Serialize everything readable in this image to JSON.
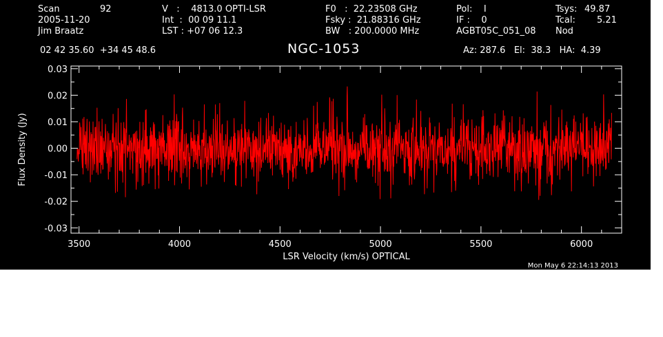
{
  "header": {
    "scan_label": "Scan",
    "scan_number": "92",
    "date": "2005-11-20",
    "observer": "Jim Braatz",
    "velocity_line": "V   :    4813.0 OPTI-LSR",
    "int_line": "Int  :  00 09 11.1",
    "lst_line": "LST : +07 06 12.3",
    "f0_line": "F0   :  22.23508 GHz",
    "fsky_line": "Fsky :  21.88316 GHz",
    "bw_line": "BW   : 200.0000 MHz",
    "pol_line": "Pol:    I",
    "if_line": "IF :    0",
    "project": "AGBT05C_051_08",
    "tsys_label": "Tsys:",
    "tsys_value": "49.87",
    "tcal_label": "Tcal:",
    "tcal_value": "5.21",
    "nod": "Nod",
    "coords": "02 42 35.60  +34 45 48.6",
    "source": "NGC-1053",
    "az_el_ha": "Az: 287.6   El:  38.3   HA:  4.39",
    "timestamp": "Mon May  6 22:14:13 2013"
  },
  "chart_data": {
    "type": "line",
    "title": "NGC-1053",
    "xlabel": "LSR Velocity (km/s) OPTICAL",
    "ylabel": "Flux Density (Jy)",
    "xlim": [
      3460,
      6200
    ],
    "ylim": [
      -0.032,
      0.031
    ],
    "xticks": [
      3500,
      4000,
      4500,
      5000,
      5500,
      6000
    ],
    "xtick_labels": [
      "3500",
      "4000",
      "4500",
      "5000",
      "5500",
      "6000"
    ],
    "yticks": [
      -0.03,
      -0.02,
      -0.01,
      0.0,
      0.01,
      0.02,
      0.03
    ],
    "ytick_labels": [
      "-0.03",
      "-0.02",
      "-0.01",
      "0.00",
      "0.01",
      "0.02",
      "0.03"
    ],
    "grid": false,
    "series": [
      {
        "color": "#ff0000",
        "x_range": [
          3490,
          6150
        ],
        "mean": 0.0,
        "rms": 0.007,
        "noise_profile": [
          {
            "x": 3500,
            "min": -0.021,
            "max": 0.012
          },
          {
            "x": 3800,
            "min": -0.018,
            "max": 0.023
          },
          {
            "x": 4100,
            "min": -0.015,
            "max": 0.019
          },
          {
            "x": 4400,
            "min": -0.019,
            "max": 0.02
          },
          {
            "x": 4700,
            "min": -0.017,
            "max": 0.018
          },
          {
            "x": 4900,
            "min": -0.02,
            "max": 0.027
          },
          {
            "x": 5300,
            "min": -0.018,
            "max": 0.02
          },
          {
            "x": 5600,
            "min": -0.016,
            "max": 0.021
          },
          {
            "x": 5900,
            "min": -0.024,
            "max": 0.026
          },
          {
            "x": 6140,
            "min": -0.021,
            "max": 0.022
          }
        ]
      }
    ]
  }
}
